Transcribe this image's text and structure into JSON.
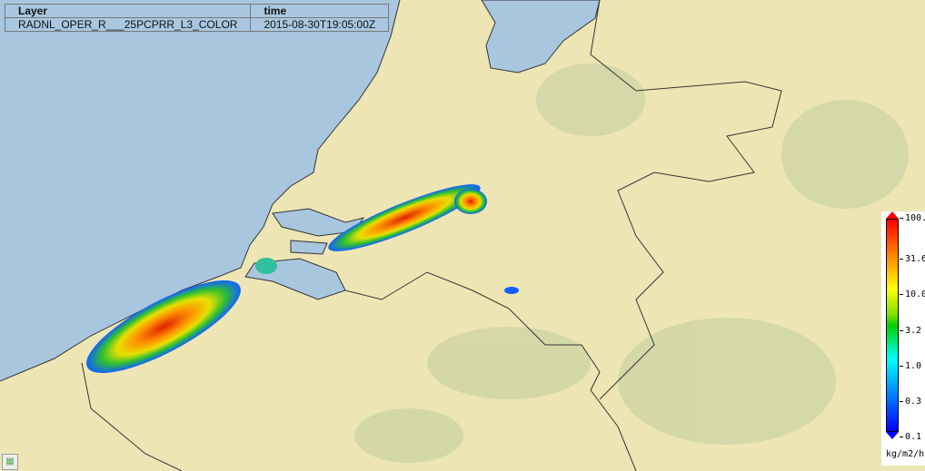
{
  "info_table": {
    "headers": [
      "Layer",
      "time"
    ],
    "row": [
      "RADNL_OPER_R___25PCPRR_L3_COLOR",
      "2015-08-30T19:05:00Z"
    ]
  },
  "legend": {
    "ticks": [
      "100.",
      "31.6",
      "10.0",
      "3.2",
      "1.0",
      "0.3",
      "0.1"
    ],
    "unit": "kg/m2/h",
    "colors": [
      "#ff0000",
      "#ff8000",
      "#ffff00",
      "#00d000",
      "#00ffff",
      "#0080ff",
      "#0000ff"
    ]
  },
  "colors": {
    "sea": "#a9c6df",
    "land": "#ede6b4",
    "border": "#333333"
  },
  "corner_icon": "image-icon"
}
